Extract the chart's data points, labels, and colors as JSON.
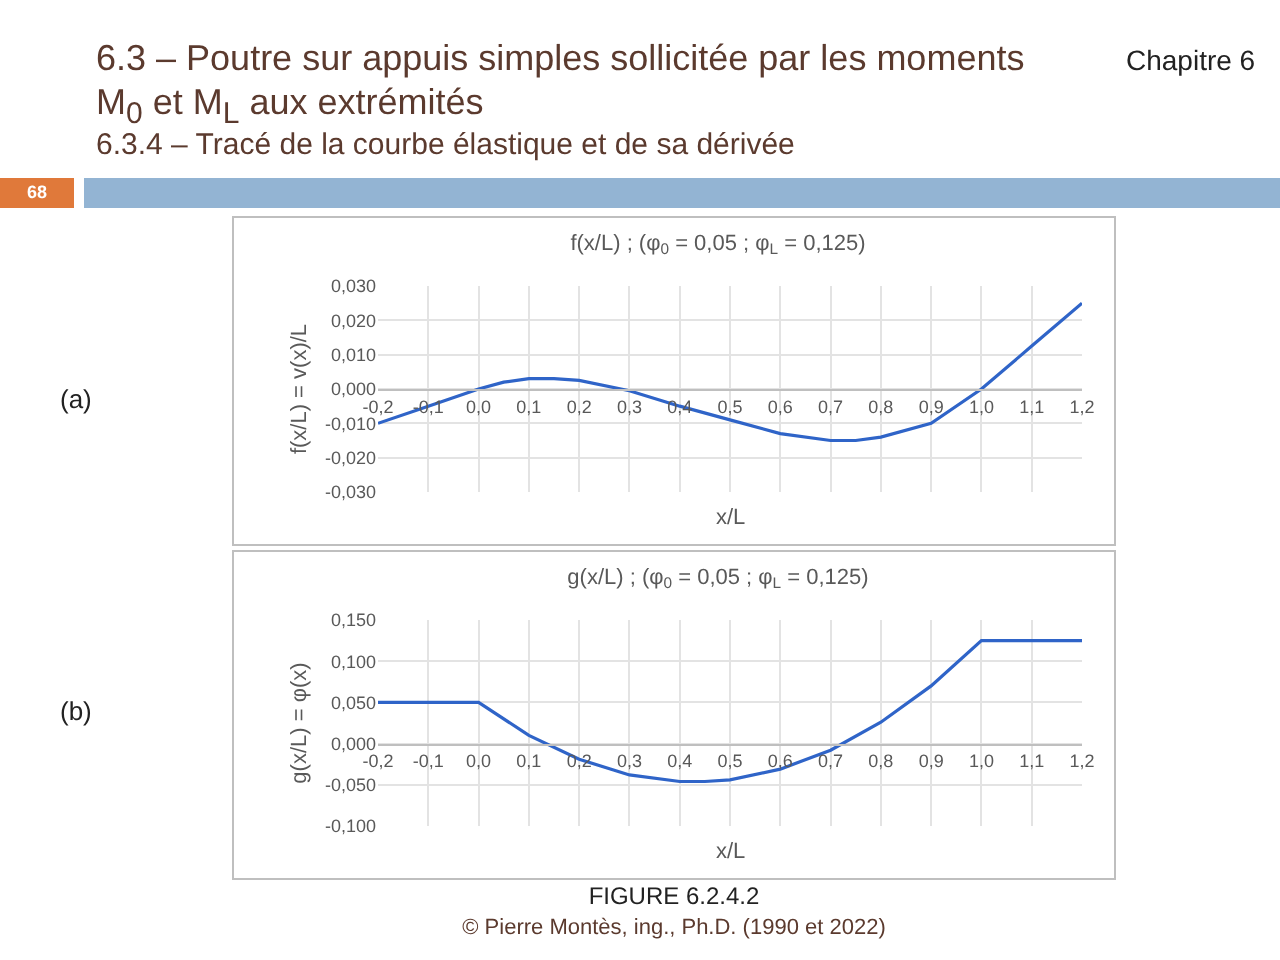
{
  "chart_data": [
    {
      "type": "line",
      "title": "f(x/L) ; (φ$_{0}$ = 0,05 ; φ$_{L}$ = 0,125)",
      "xlabel": "x/L",
      "ylabel": "f(x/L) = v(x)/L",
      "annotations": [
        "6.3 – Poutre sur appuis simples sollicitée par les moments M$_{0}$ et M$_{L}$ aux extrémités",
        "6.3.4 – Tracé de la courbe élastique et de sa dérivée",
        "Chapitre 6",
        "68",
        "(a)"
      ],
      "x": [
        -0.2,
        -0.1,
        0.0,
        0.05,
        0.1,
        0.15,
        0.2,
        0.3,
        0.4,
        0.5,
        0.6,
        0.7,
        0.75,
        0.8,
        0.9,
        1.0,
        1.1,
        1.2
      ],
      "series": [
        {
          "color": "#2f64c8",
          "values": [
            -0.01,
            -0.005,
            0.0,
            0.002,
            0.003,
            0.003,
            0.0025,
            -0.0005,
            -0.005,
            -0.009,
            -0.013,
            -0.015,
            -0.015,
            -0.014,
            -0.01,
            0.0,
            0.0125,
            0.025
          ]
        }
      ],
      "xlim": [
        -0.2,
        1.2
      ],
      "xticks": [
        {
          "value": -0.2,
          "label": "-0,2"
        },
        {
          "value": -0.1,
          "label": "-0,1"
        },
        {
          "value": 0,
          "label": "0,0"
        },
        {
          "value": 0.1,
          "label": "0,1"
        },
        {
          "value": 0.2,
          "label": "0,2"
        },
        {
          "value": 0.3,
          "label": "0,3"
        },
        {
          "value": 0.4,
          "label": "0,4"
        },
        {
          "value": 0.5,
          "label": "0,5"
        },
        {
          "value": 0.6,
          "label": "0,6"
        },
        {
          "value": 0.7,
          "label": "0,7"
        },
        {
          "value": 0.8,
          "label": "0,8"
        },
        {
          "value": 0.9,
          "label": "0,9"
        },
        {
          "value": 1.0,
          "label": "1,0"
        },
        {
          "value": 1.1,
          "label": "1,1"
        },
        {
          "value": 1.2,
          "label": "1,2"
        }
      ],
      "ylim": [
        -0.03,
        0.03
      ],
      "yticks": [
        {
          "value": -0.03,
          "label": "-0,030"
        },
        {
          "value": -0.02,
          "label": "-0,020"
        },
        {
          "value": -0.01,
          "label": "-0,010"
        },
        {
          "value": 0,
          "label": "0,000"
        },
        {
          "value": 0.01,
          "label": "0,010"
        },
        {
          "value": 0.02,
          "label": "0,020"
        },
        {
          "value": 0.03,
          "label": "0,030"
        }
      ],
      "grid": true,
      "marker": "none",
      "line_style": "solid"
    },
    {
      "type": "line",
      "title": "g(x/L) ; (φ$_{0}$ = 0,05 ; φ$_{L}$ = 0,125)",
      "xlabel": "x/L",
      "ylabel": "g(x/L) = φ(x)",
      "annotations": [
        "(b)",
        "FIGURE 6.2.4.2",
        "© Pierre Montès, ing., Ph.D. (1990 et 2022)"
      ],
      "x": [
        -0.2,
        -0.1,
        0.0,
        0.1,
        0.2,
        0.3,
        0.4,
        0.45,
        0.5,
        0.6,
        0.7,
        0.8,
        0.9,
        1.0,
        1.1,
        1.2
      ],
      "series": [
        {
          "color": "#2f64c8",
          "values": [
            0.05,
            0.05,
            0.05,
            0.01,
            -0.019,
            -0.038,
            -0.046,
            -0.046,
            -0.044,
            -0.031,
            -0.008,
            0.026,
            0.07,
            0.125,
            0.125,
            0.125
          ]
        }
      ],
      "xlim": [
        -0.2,
        1.2
      ],
      "xticks": [
        {
          "value": -0.2,
          "label": "-0,2"
        },
        {
          "value": -0.1,
          "label": "-0,1"
        },
        {
          "value": 0,
          "label": "0,0"
        },
        {
          "value": 0.1,
          "label": "0,1"
        },
        {
          "value": 0.2,
          "label": "0,2"
        },
        {
          "value": 0.3,
          "label": "0,3"
        },
        {
          "value": 0.4,
          "label": "0,4"
        },
        {
          "value": 0.5,
          "label": "0,5"
        },
        {
          "value": 0.6,
          "label": "0,6"
        },
        {
          "value": 0.7,
          "label": "0,7"
        },
        {
          "value": 0.8,
          "label": "0,8"
        },
        {
          "value": 0.9,
          "label": "0,9"
        },
        {
          "value": 1.0,
          "label": "1,0"
        },
        {
          "value": 1.1,
          "label": "1,1"
        },
        {
          "value": 1.2,
          "label": "1,2"
        }
      ],
      "ylim": [
        -0.1,
        0.15
      ],
      "yticks": [
        {
          "value": -0.1,
          "label": "-0,100"
        },
        {
          "value": -0.05,
          "label": "-0,050"
        },
        {
          "value": 0,
          "label": "0,000"
        },
        {
          "value": 0.05,
          "label": "0,050"
        },
        {
          "value": 0.1,
          "label": "0,100"
        },
        {
          "value": 0.15,
          "label": "0,150"
        }
      ],
      "grid": true,
      "marker": "none",
      "line_style": "solid"
    }
  ]
}
